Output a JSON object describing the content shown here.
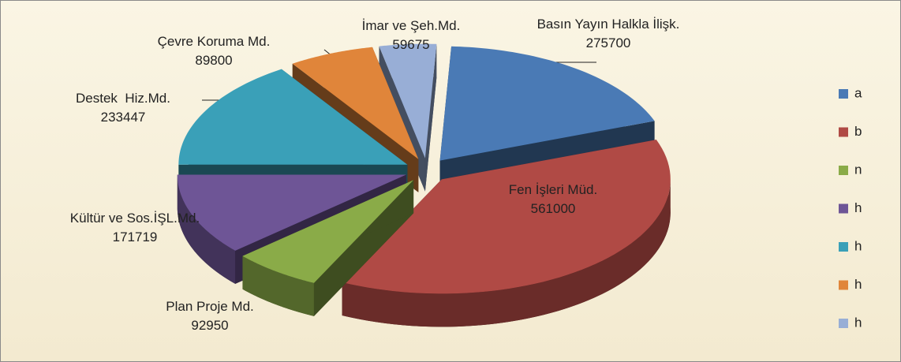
{
  "chart_data": {
    "type": "pie",
    "categories": [
      "Basın Yayın Halkla İlişk.",
      "Fen İşleri Müd.",
      "Plan Proje Md.",
      "Kültür ve Sos.İŞL.Md.",
      "Destek  Hiz.Md.",
      "Çevre Koruma Md.",
      "İmar ve Şeh.Md."
    ],
    "values": [
      275700,
      561000,
      92950,
      171719,
      233447,
      89800,
      59675
    ],
    "colors": [
      "#4a7ab5",
      "#b04a45",
      "#8aab48",
      "#6e5596",
      "#3aa0b8",
      "#e0853a",
      "#98aed6"
    ],
    "legend": [
      "a",
      "b",
      "n",
      "h",
      "h",
      "h",
      "h"
    ]
  }
}
